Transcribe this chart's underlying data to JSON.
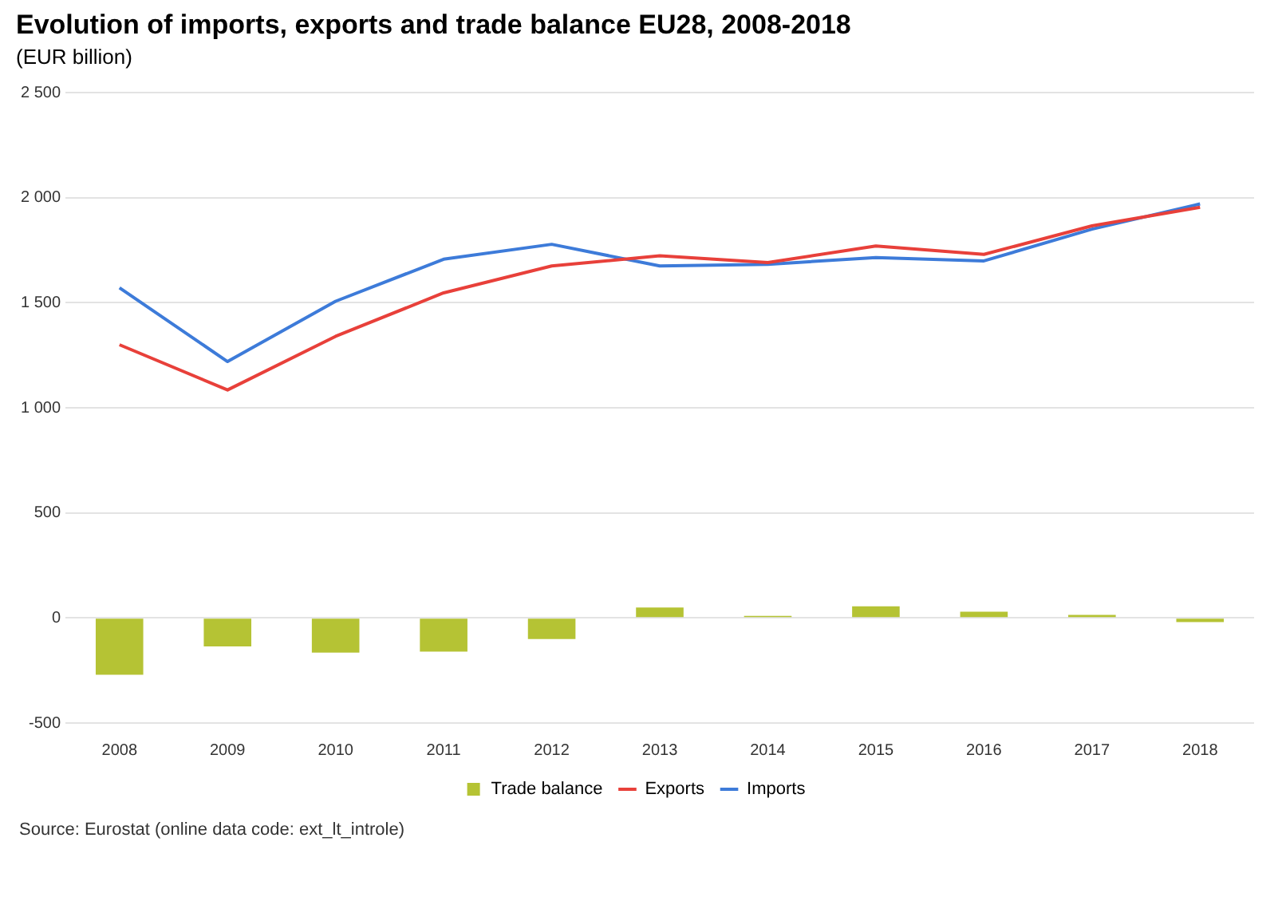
{
  "chart_data": {
    "type": "bar",
    "title": "Evolution of imports, exports and trade balance EU28, 2008-2018",
    "subtitle": "(EUR billion)",
    "categories": [
      "2008",
      "2009",
      "2010",
      "2011",
      "2012",
      "2013",
      "2014",
      "2015",
      "2016",
      "2017",
      "2018"
    ],
    "series": [
      {
        "name": "Trade balance",
        "color": "#b5c334",
        "values": [
          -270,
          -135,
          -165,
          -160,
          -100,
          50,
          10,
          55,
          30,
          15,
          -20
        ]
      },
      {
        "name": "Exports",
        "type": "line",
        "color": "#e8403a",
        "values": [
          1300,
          1085,
          1340,
          1547,
          1675,
          1723,
          1691,
          1770,
          1730,
          1866,
          1954
        ]
      },
      {
        "name": "Imports",
        "type": "line",
        "color": "#3d7bd9",
        "values": [
          1571,
          1220,
          1507,
          1707,
          1778,
          1675,
          1683,
          1715,
          1699,
          1850,
          1970
        ]
      }
    ],
    "ylim": [
      -500,
      2500
    ],
    "yticks": [
      {
        "value": -500,
        "label": "-500"
      },
      0,
      500,
      {
        "value": 1000,
        "label": "1 000"
      },
      {
        "value": 1500,
        "label": "1 500"
      },
      {
        "value": 2000,
        "label": "2 000"
      },
      {
        "value": 2500,
        "label": "2 500"
      }
    ],
    "grid": "y",
    "legend": "bottom",
    "marker": "none",
    "annotations": [
      "Source: Eurostat (online data code: ext_lt_introle)"
    ]
  }
}
